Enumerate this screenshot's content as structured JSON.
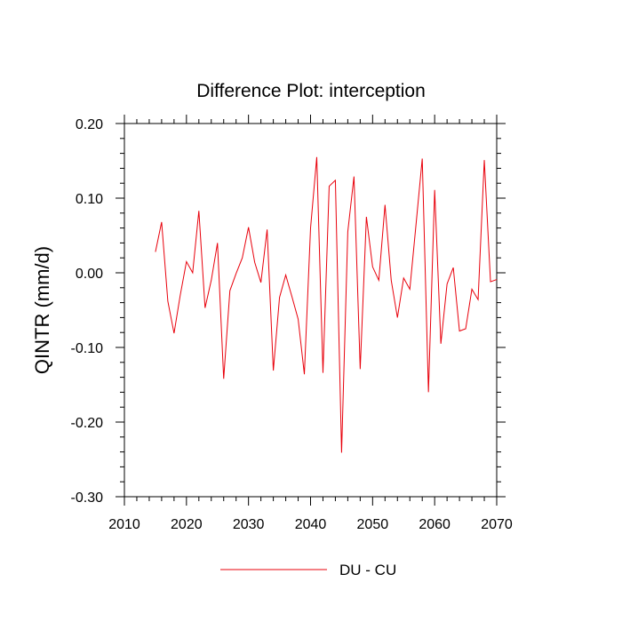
{
  "chart_data": {
    "type": "line",
    "title": "Difference Plot: interception",
    "xlabel": "",
    "ylabel": "QINTR  (mm/d)",
    "xlim": [
      2010,
      2070
    ],
    "ylim": [
      -0.3,
      0.2
    ],
    "xticks": [
      2010,
      2020,
      2030,
      2040,
      2050,
      2060,
      2070
    ],
    "xtick_labels": [
      "2010",
      "2020",
      "2030",
      "2040",
      "2050",
      "2060",
      "2070"
    ],
    "yticks": [
      -0.3,
      -0.2,
      -0.1,
      0.0,
      0.1,
      0.2
    ],
    "ytick_labels": [
      "-0.30",
      "-0.20",
      "-0.10",
      "0.00",
      "0.10",
      "0.20"
    ],
    "grid": false,
    "legend_position": "bottom-center",
    "series": [
      {
        "name": "DU - CU",
        "color": "#e8000b",
        "x": [
          2015,
          2016,
          2017,
          2018,
          2019,
          2020,
          2021,
          2022,
          2023,
          2024,
          2025,
          2026,
          2027,
          2028,
          2029,
          2030,
          2031,
          2032,
          2033,
          2034,
          2035,
          2036,
          2037,
          2038,
          2039,
          2040,
          2041,
          2042,
          2043,
          2044,
          2045,
          2046,
          2047,
          2048,
          2049,
          2050,
          2051,
          2052,
          2053,
          2054,
          2055,
          2056,
          2057,
          2058,
          2059,
          2060,
          2061,
          2062,
          2063,
          2064,
          2065,
          2066,
          2067,
          2068,
          2069,
          2070
        ],
        "y": [
          0.028,
          0.068,
          -0.038,
          -0.081,
          -0.03,
          0.015,
          0.0,
          0.083,
          -0.047,
          -0.01,
          0.04,
          -0.142,
          -0.024,
          -0.001,
          0.02,
          0.061,
          0.014,
          -0.013,
          0.058,
          -0.131,
          -0.033,
          -0.003,
          -0.032,
          -0.062,
          -0.136,
          0.06,
          0.155,
          -0.134,
          0.116,
          0.124,
          -0.241,
          0.055,
          0.129,
          -0.129,
          0.075,
          0.008,
          -0.01,
          0.091,
          -0.01,
          -0.06,
          -0.007,
          -0.022,
          0.065,
          0.153,
          -0.16,
          0.111,
          -0.095,
          -0.015,
          0.007,
          -0.078,
          -0.075,
          -0.022,
          -0.036,
          0.151,
          -0.012,
          -0.009
        ]
      }
    ]
  }
}
